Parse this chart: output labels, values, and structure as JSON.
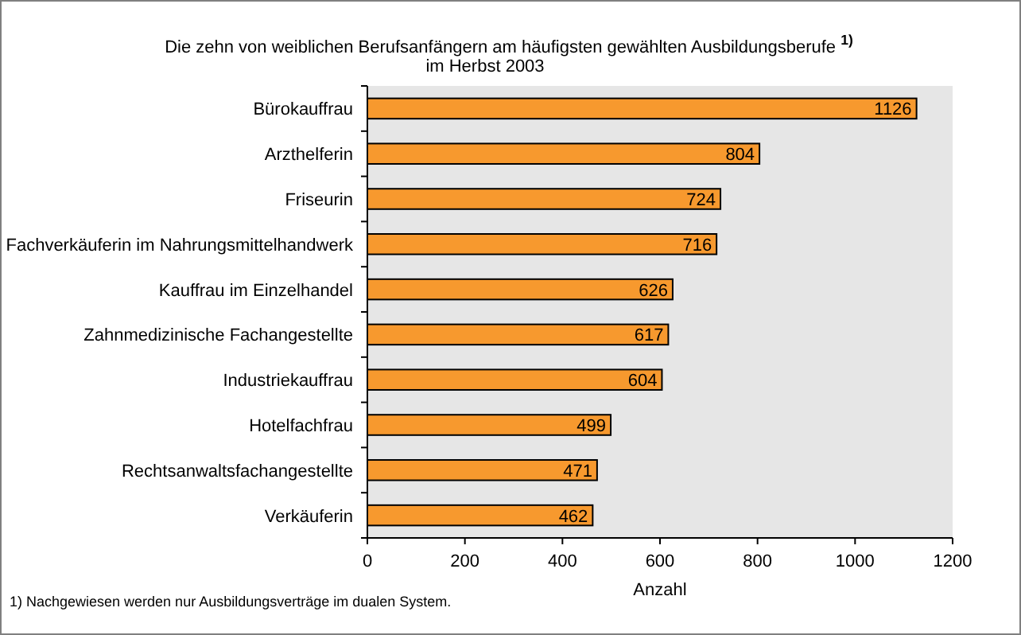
{
  "chart_data": {
    "type": "bar",
    "orientation": "horizontal",
    "title": "Die zehn von weiblichen Berufsanfängern am häufigsten gewählten Ausbildungsberufe $^{1)}$\nim Herbst 2003",
    "categories": [
      "Bürokauffrau",
      "Arzthelferin",
      "Friseurin",
      "Fachverkäuferin im Nahrungsmittelhandwerk",
      "Kauffrau im Einzelhandel",
      "Zahnmedizinische Fachangestellte",
      "Industriekauffrau",
      "Hotelfachfrau",
      "Rechtsanwaltsfachangestellte",
      "Verkäuferin"
    ],
    "values": [
      1126,
      804,
      724,
      716,
      626,
      617,
      604,
      499,
      471,
      462
    ],
    "color": "#f7992e",
    "data_labels": true,
    "xlim": [
      0,
      1200
    ],
    "xticks": [
      0,
      200,
      400,
      600,
      800,
      1000,
      1200
    ],
    "xlabel": "Anzahl",
    "annotations": [
      "1) Nachgewiesen werden nur Ausbildungsverträge im dualen System."
    ]
  }
}
